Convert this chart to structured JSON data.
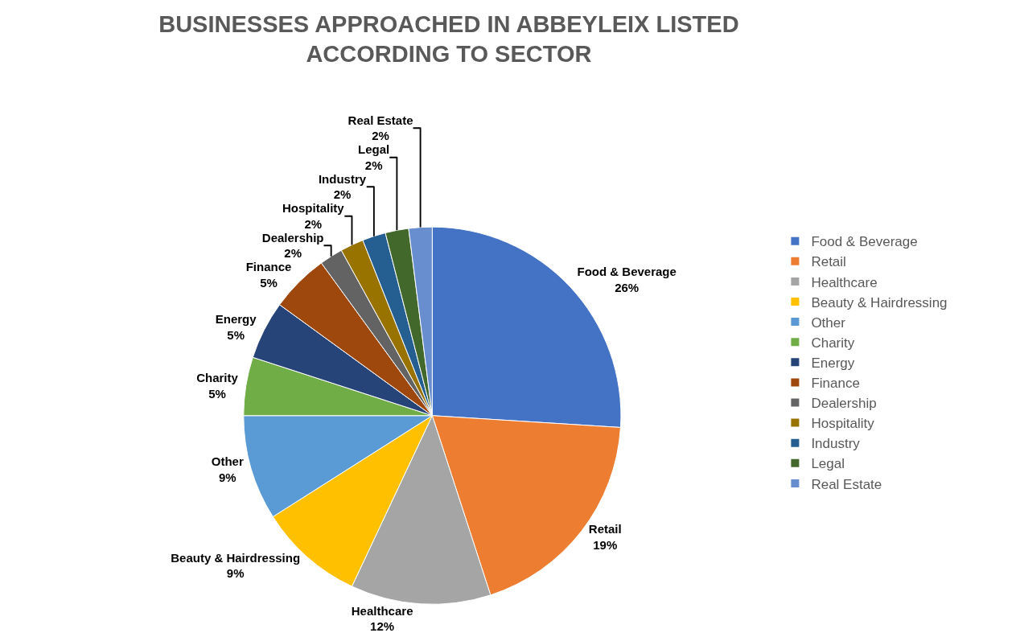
{
  "chart_data": {
    "type": "pie",
    "title": "BUSINESSES APPROACHED IN ABBEYLEIX LISTED ACCORDING TO SECTOR",
    "categories": [
      "Food & Beverage",
      "Retail",
      "Healthcare",
      "Beauty & Hairdressing",
      "Other",
      "Charity",
      "Energy",
      "Finance",
      "Dealership",
      "Hospitality",
      "Industry",
      "Legal",
      "Real Estate"
    ],
    "values": [
      26,
      19,
      12,
      9,
      9,
      5,
      5,
      5,
      2,
      2,
      2,
      2,
      2
    ],
    "value_labels": [
      "26%",
      "19%",
      "12%",
      "9%",
      "9%",
      "5%",
      "5%",
      "5%",
      "2%",
      "2%",
      "2%",
      "2%",
      "2%"
    ],
    "colors": [
      "#4472c4",
      "#ed7d31",
      "#a5a5a5",
      "#ffc000",
      "#5b9bd5",
      "#70ad47",
      "#264478",
      "#9e480e",
      "#636363",
      "#997300",
      "#255e91",
      "#43682b",
      "#698ed0"
    ],
    "legend": "right"
  }
}
